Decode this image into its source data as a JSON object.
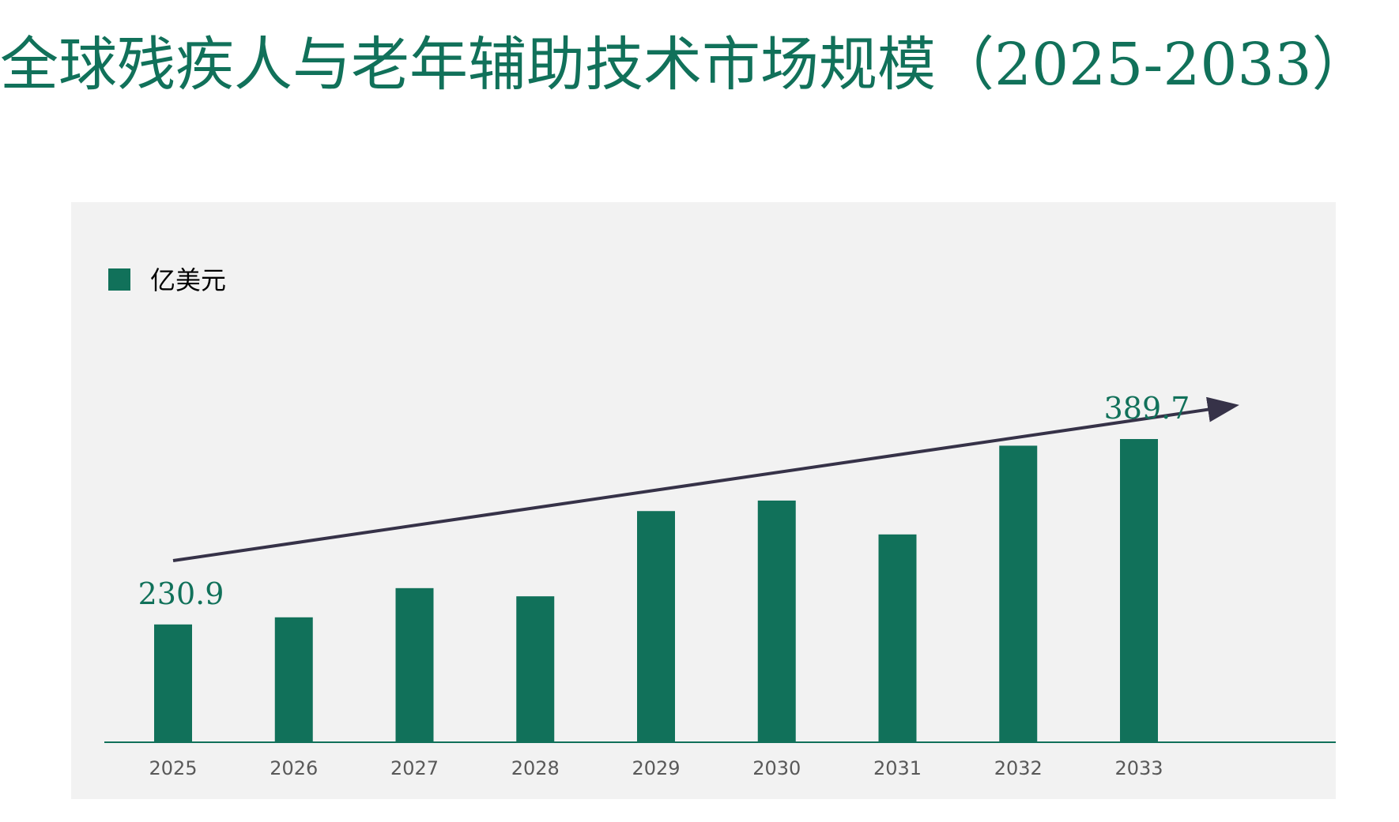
{
  "title": "全球残疾人与老年辅助技术市场规模（2025-2033）",
  "colors": {
    "bar": "#11715a",
    "title": "#11715a",
    "panel_background": "#f2f2f2",
    "trend_arrow": "#363248",
    "axis_line": "#11715a",
    "tick_label": "#595959"
  },
  "chart_data": {
    "type": "bar",
    "title": "",
    "xlabel": "",
    "ylabel": "",
    "categories": [
      "2025",
      "2026",
      "2027",
      "2028",
      "2029",
      "2030",
      "2031",
      "2032",
      "2033"
    ],
    "series": [
      {
        "name": "亿美元",
        "values": [
          230.9,
          237.0,
          262.0,
          255.0,
          328.0,
          337.0,
          308.0,
          384.0,
          389.7
        ]
      }
    ],
    "data_labels": [
      {
        "category": "2025",
        "text": "230.9"
      },
      {
        "category": "2033",
        "text": "389.7"
      }
    ],
    "ylim": [
      130,
      420
    ],
    "grid": false,
    "legend_position": "top-left",
    "trend_arrow": "upward"
  }
}
